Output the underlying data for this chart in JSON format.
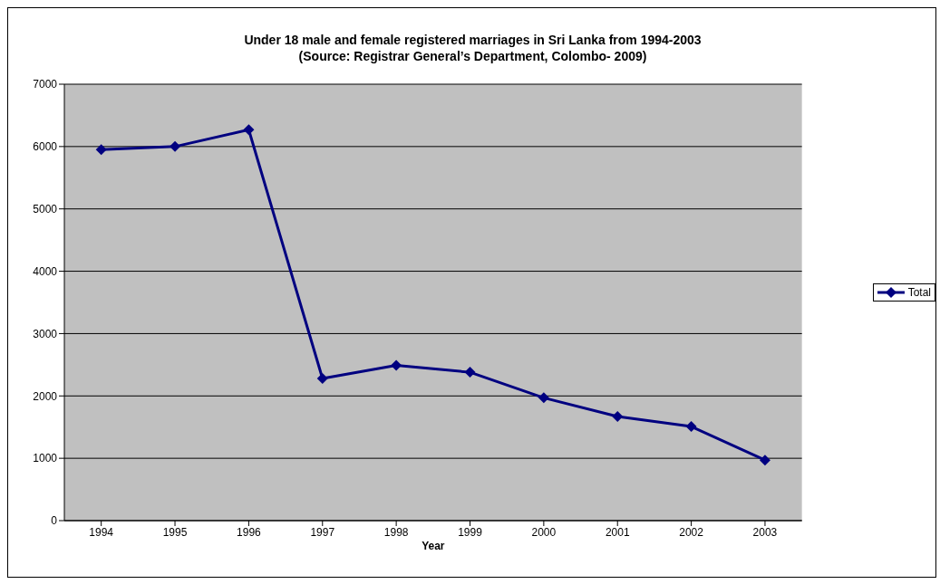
{
  "chart_data": {
    "type": "line",
    "title": "Under 18 male and female registered marriages in Sri Lanka from 1994-2003",
    "subtitle": "(Source: Registrar General’s Department, Colombo- 2009)",
    "xlabel": "Year",
    "categories": [
      "1994",
      "1995",
      "1996",
      "1997",
      "1998",
      "1999",
      "2000",
      "2001",
      "2002",
      "2003"
    ],
    "series": [
      {
        "name": "Total",
        "color": "#000080",
        "values": [
          5950,
          6000,
          6270,
          2280,
          2490,
          2380,
          1970,
          1670,
          1510,
          970
        ]
      }
    ],
    "ylim": [
      0,
      7000
    ],
    "yticks": [
      0,
      1000,
      2000,
      3000,
      4000,
      5000,
      6000,
      7000
    ],
    "grid": "y",
    "legend": "right",
    "marker": "diamond",
    "line_style": "solid"
  }
}
